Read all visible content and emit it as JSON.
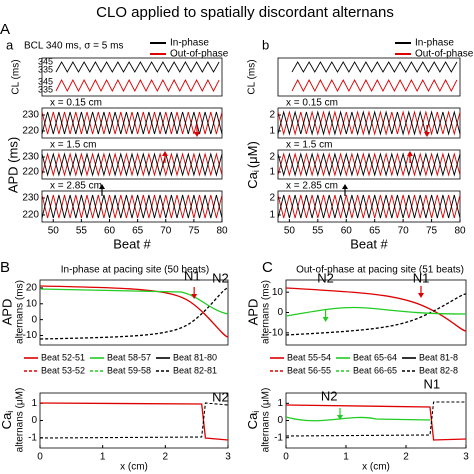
{
  "title": "CLO applied to spatially discordant alternans",
  "panel_A": {
    "label": "A",
    "a": {
      "label": "a",
      "subtitle": "BCL 340 ms, σ = 5 ms",
      "legend": [
        "In-phase",
        "Out-of-phase"
      ],
      "cl_label": "CL (ms)",
      "cl_ticks": [
        "345",
        "335",
        "345",
        "335"
      ],
      "traces": [
        "x = 0.15 cm",
        "x = 1.5 cm",
        "x = 2.85 cm"
      ],
      "y_label": "APD (ms)",
      "yticks": [
        230,
        220
      ],
      "xticks": [
        50,
        55,
        60,
        65,
        70,
        75,
        80
      ],
      "xlim": [
        48,
        80
      ],
      "xlabel": "Beat #"
    },
    "b": {
      "label": "b",
      "legend": [
        "In-phase",
        "Out-of-phase"
      ],
      "cl_label": "CL (ms)",
      "traces": [
        "x = 0.15 cm",
        "x = 1.5 cm",
        "x = 2.85 cm"
      ],
      "y_label": "Ca",
      "y_sub": "i",
      "y_unit": "(μM)",
      "yticks": [
        2,
        1
      ],
      "xticks": [
        50,
        55,
        60,
        65,
        70,
        75,
        80
      ],
      "xlim": [
        48,
        80
      ],
      "xlabel": "Beat #"
    }
  },
  "panel_B": {
    "label": "B",
    "title": "In-phase at pacing site (50 beats)",
    "apd_label": [
      "APD",
      "alternans (ms)"
    ],
    "apd_yticks": [
      20,
      10,
      0,
      -10
    ],
    "apd_ylim": [
      -16,
      25
    ],
    "ca_label": [
      "Ca",
      "i",
      "alternans (μM)"
    ],
    "ca_yticks": [
      1,
      0,
      -1
    ],
    "ca_ylim": [
      -1.6,
      1.6
    ],
    "annotations": [
      "N1",
      "N2"
    ],
    "legend": [
      "Beat 52-51",
      "Beat 53-52",
      "Beat 58-57",
      "Beat 59-58",
      "Beat 81-80",
      "Beat 82-81"
    ],
    "xticks": [
      0,
      1,
      2,
      3
    ],
    "xlim": [
      0,
      3
    ],
    "xlabel": "x (cm)"
  },
  "panel_C": {
    "label": "C",
    "title": "Out-of-phase at pacing site (51 beats)",
    "apd_label": [
      "APD",
      "alternans (ms)"
    ],
    "apd_yticks": [
      10,
      0,
      -10
    ],
    "apd_ylim": [
      -16,
      16
    ],
    "ca_label": [
      "Ca",
      "i",
      "alternans (μM)"
    ],
    "ca_yticks": [
      1,
      0,
      -1
    ],
    "ca_ylim": [
      -1.6,
      1.6
    ],
    "annotations": [
      "N1",
      "N2",
      "N1",
      "N2"
    ],
    "legend": [
      "Beat 55-54",
      "Beat 56-55",
      "Beat 65-64",
      "Beat 66-65",
      "Beat 81-8",
      "Beat 82-8"
    ],
    "xticks": [
      0,
      1,
      2,
      3
    ],
    "xlim": [
      0,
      3
    ],
    "xlabel": "x (cm)"
  }
}
